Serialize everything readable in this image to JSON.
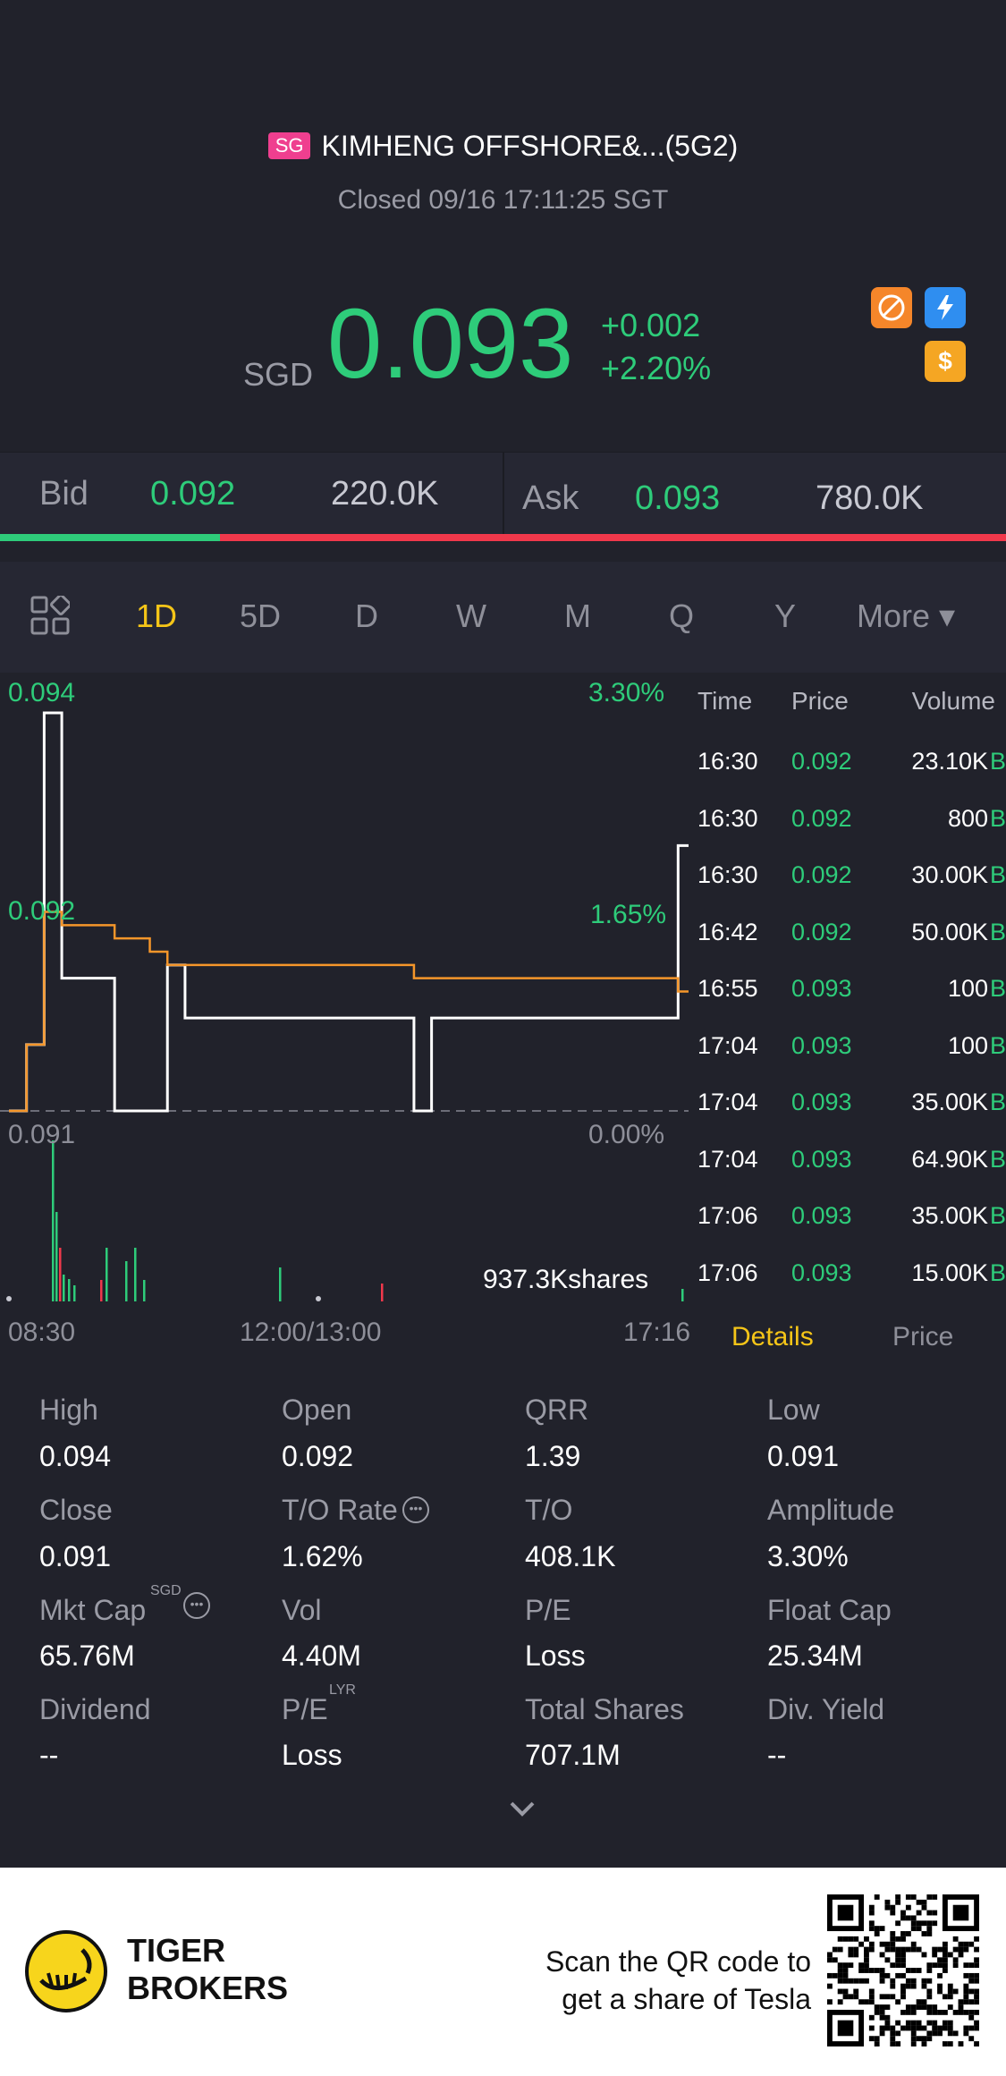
{
  "header": {
    "market_badge": "SG",
    "title": "KIMHENG OFFSHORE&...(5G2)",
    "status": "Closed 09/16 17:11:25 SGT",
    "currency": "SGD",
    "price": "0.093",
    "change_abs": "+0.002",
    "change_pct": "+2.20%"
  },
  "bid_ask": {
    "bid_label": "Bid",
    "bid_price": "0.092",
    "bid_size": "220.0K",
    "ask_label": "Ask",
    "ask_price": "0.093",
    "ask_size": "780.0K",
    "bid_ratio": 0.219
  },
  "tabs": [
    "1D",
    "5D",
    "D",
    "W",
    "M",
    "Q",
    "Y",
    "More ▾"
  ],
  "active_tab": "1D",
  "chart": {
    "y_high": "0.094",
    "y_mid": "0.092",
    "y_low": "0.091",
    "pct_high": "3.30%",
    "pct_mid": "1.65%",
    "pct_low": "0.00%",
    "volume_label": "937.3Kshares",
    "x_start": "08:30",
    "x_mid": "12:00/13:00",
    "x_end": "17:16"
  },
  "chart_data": {
    "type": "line",
    "series": [
      {
        "values": [
          0.091,
          0.0915,
          0.094,
          0.092,
          0.092,
          0.092,
          0.091,
          0.091,
          0.091,
          0.0921,
          0.0917,
          0.0917,
          0.0917,
          0.0917,
          0.0917,
          0.0917,
          0.0917,
          0.0917,
          0.0917,
          0.0917,
          0.0917,
          0.0917,
          0.0917,
          0.091,
          0.0917,
          0.0917,
          0.0917,
          0.0917,
          0.0917,
          0.0917,
          0.0917,
          0.0917,
          0.0917,
          0.0917,
          0.0917,
          0.0917,
          0.0917,
          0.0917,
          0.093,
          0.093
        ]
      },
      {
        "values": [
          0.091,
          0.0915,
          0.0925,
          0.0924,
          0.0924,
          0.0924,
          0.0923,
          0.0923,
          0.0922,
          0.0921,
          0.0921,
          0.0921,
          0.0921,
          0.0921,
          0.0921,
          0.0921,
          0.0921,
          0.0921,
          0.0921,
          0.0921,
          0.0921,
          0.0921,
          0.0921,
          0.092,
          0.092,
          0.092,
          0.092,
          0.092,
          0.092,
          0.092,
          0.092,
          0.092,
          0.092,
          0.092,
          0.092,
          0.092,
          0.092,
          0.092,
          0.0919,
          0.0919
        ]
      }
    ],
    "ylim": [
      0.091,
      0.094
    ],
    "baseline": 0.091
  },
  "trades": {
    "headers": {
      "time": "Time",
      "price": "Price",
      "volume": "Volume"
    },
    "rows": [
      {
        "time": "16:30",
        "price": "0.092",
        "volume": "23.10K",
        "side": "B"
      },
      {
        "time": "16:30",
        "price": "0.092",
        "volume": "800",
        "side": "B"
      },
      {
        "time": "16:30",
        "price": "0.092",
        "volume": "30.00K",
        "side": "B"
      },
      {
        "time": "16:42",
        "price": "0.092",
        "volume": "50.00K",
        "side": "B"
      },
      {
        "time": "16:55",
        "price": "0.093",
        "volume": "100",
        "side": "B"
      },
      {
        "time": "17:04",
        "price": "0.093",
        "volume": "100",
        "side": "B"
      },
      {
        "time": "17:04",
        "price": "0.093",
        "volume": "35.00K",
        "side": "B"
      },
      {
        "time": "17:04",
        "price": "0.093",
        "volume": "64.90K",
        "side": "B"
      },
      {
        "time": "17:06",
        "price": "0.093",
        "volume": "35.00K",
        "side": "B"
      },
      {
        "time": "17:06",
        "price": "0.093",
        "volume": "15.00K",
        "side": "B"
      }
    ]
  },
  "panel_tabs": {
    "details": "Details",
    "price": "Price"
  },
  "stats": {
    "high": {
      "label": "High",
      "value": "0.094"
    },
    "open": {
      "label": "Open",
      "value": "0.092"
    },
    "qrr": {
      "label": "QRR",
      "value": "1.39"
    },
    "low": {
      "label": "Low",
      "value": "0.091"
    },
    "close": {
      "label": "Close",
      "value": "0.091"
    },
    "to_rate": {
      "label": "T/O Rate",
      "value": "1.62%"
    },
    "to": {
      "label": "T/O",
      "value": "408.1K"
    },
    "amplitude": {
      "label": "Amplitude",
      "value": "3.30%"
    },
    "mkt_cap": {
      "label": "Mkt Cap",
      "sup": "SGD",
      "value": "65.76M"
    },
    "vol": {
      "label": "Vol",
      "value": "4.40M"
    },
    "pe": {
      "label": "P/E",
      "value": "Loss"
    },
    "float_cap": {
      "label": "Float Cap",
      "value": "25.34M"
    },
    "dividend": {
      "label": "Dividend",
      "value": "--"
    },
    "pe_lyr": {
      "label": "P/E",
      "sup": "LYR",
      "value": "Loss"
    },
    "total_shares": {
      "label": "Total Shares",
      "value": "707.1M"
    },
    "div_yield": {
      "label": "Div. Yield",
      "value": "--"
    }
  },
  "footer": {
    "brand_line1": "TIGER",
    "brand_line2": "BROKERS",
    "scan_line1": "Scan the QR code to",
    "scan_line2": "get a share of Tesla"
  },
  "colors": {
    "up": "#2ecc7a",
    "down": "#f0384b",
    "accent": "#f5c518",
    "avg_line": "#f5962a"
  }
}
